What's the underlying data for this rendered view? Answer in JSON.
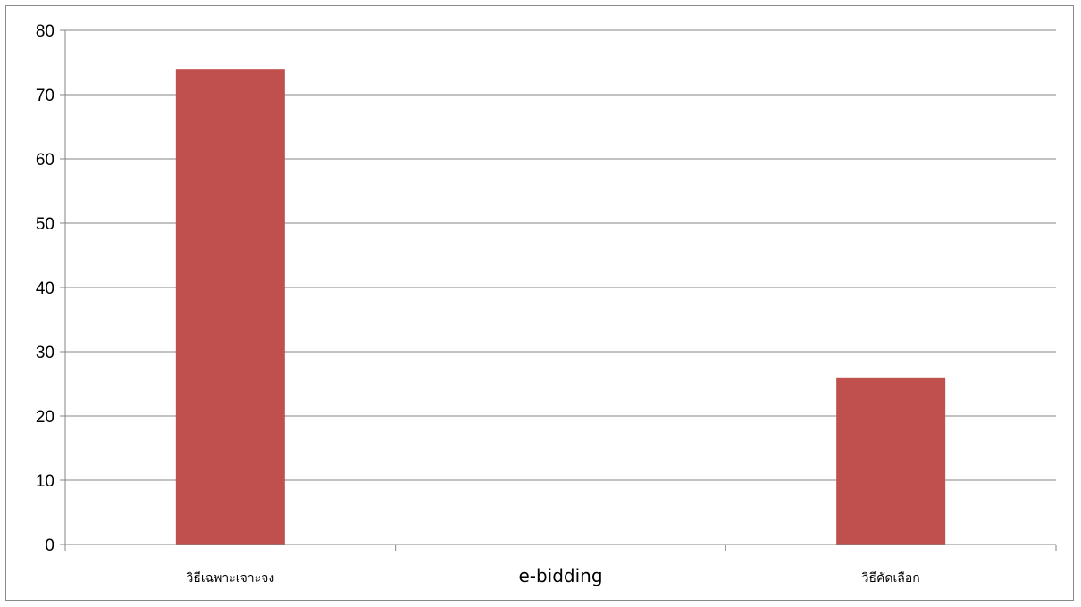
{
  "chart_data": {
    "type": "bar",
    "categories": [
      "วิธีเฉพาะเจาะจง",
      "e-bidding",
      "วิธีคัดเลือก"
    ],
    "values": [
      74,
      0,
      26
    ],
    "title": "",
    "xlabel": "",
    "ylabel": "",
    "ylim": [
      0,
      80
    ],
    "yticks": [
      0,
      10,
      20,
      30,
      40,
      50,
      60,
      70,
      80
    ],
    "grid": true,
    "legend": "none",
    "bar_color": "#C0504D",
    "grid_color": "#868686"
  }
}
